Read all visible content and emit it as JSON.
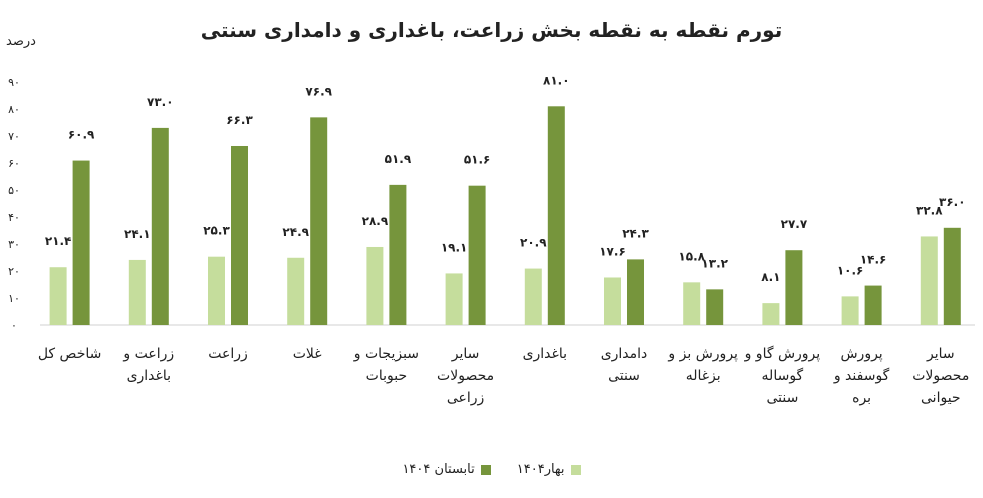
{
  "chart_data": {
    "type": "bar",
    "title": "تورم نقطه به نقطه بخش زراعت، باغداری و دامداری سنتی",
    "ylabel": "درصد",
    "ylim": [
      0,
      90
    ],
    "yticks": [
      "۰",
      "۱۰",
      "۲۰",
      "۳۰",
      "۴۰",
      "۵۰",
      "۶۰",
      "۷۰",
      "۸۰",
      "۹۰"
    ],
    "grid": false,
    "legend_position": "bottom",
    "categories": [
      "شاخص کل",
      "زراعت و باغداری",
      "زراعت",
      "غلات",
      "سبزیجات و حبوبات",
      "سایر محصولات زراعی",
      "باغداری",
      "دامداری سنتی",
      "پرورش بز و بزغاله",
      "پرورش گاو و گوساله سنتی",
      "پرورش گوسفند و بره",
      "سایر محصولات حیوانی"
    ],
    "category_lines": [
      [
        "شاخص کل"
      ],
      [
        "زراعت و",
        "باغداری"
      ],
      [
        "زراعت"
      ],
      [
        "غلات"
      ],
      [
        "سبزیجات و",
        "حبوبات"
      ],
      [
        "سایر",
        "محصولات",
        "زراعی"
      ],
      [
        "باغداری"
      ],
      [
        "دامداری",
        "سنتی"
      ],
      [
        "پرورش بز و",
        "بزغاله"
      ],
      [
        "پرورش گاو و",
        "گوساله",
        "سنتی"
      ],
      [
        "پرورش",
        "گوسفند و",
        "بره"
      ],
      [
        "سایر",
        "محصولات",
        "حیوانی"
      ]
    ],
    "series": [
      {
        "name": "بهار۱۴۰۴",
        "color": "#c5dd9c",
        "values": [
          21.4,
          24.1,
          25.3,
          24.9,
          28.9,
          19.1,
          20.9,
          17.6,
          15.8,
          8.1,
          10.6,
          32.8
        ],
        "labels": [
          "۲۱.۴",
          "۲۴.۱",
          "۲۵.۳",
          "۲۴.۹",
          "۲۸.۹",
          "۱۹.۱",
          "۲۰.۹",
          "۱۷.۶",
          "۱۵.۸",
          "۸.۱",
          "۱۰.۶",
          "۳۲.۸"
        ]
      },
      {
        "name": "تابستان ۱۴۰۴",
        "color": "#76953c",
        "values": [
          60.9,
          73.0,
          66.3,
          76.9,
          51.9,
          51.6,
          81.0,
          24.3,
          13.2,
          27.7,
          14.6,
          36.0
        ],
        "labels": [
          "۶۰.۹",
          "۷۳.۰",
          "۶۶.۳",
          "۷۶.۹",
          "۵۱.۹",
          "۵۱.۶",
          "۸۱.۰",
          "۲۴.۳",
          "۱۳.۲",
          "۲۷.۷",
          "۱۴.۶",
          "۳۶.۰"
        ]
      }
    ]
  }
}
